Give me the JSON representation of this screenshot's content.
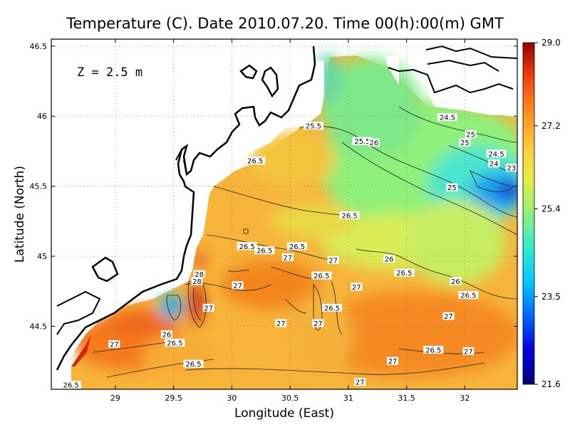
{
  "chart_data": {
    "type": "heatmap",
    "title": "Temperature (C). Date 2010.07.20. Time 00(h):00(m) GMT",
    "annotation": "Z = 2.5 m",
    "xlabel": "Longitude (East)",
    "ylabel": "Latitude (North)",
    "xlim": [
      28.45,
      32.45
    ],
    "ylim": [
      44.05,
      46.55
    ],
    "x_ticks": [
      29,
      29.5,
      30,
      30.5,
      31,
      31.5,
      32
    ],
    "x_tick_labels": [
      "29",
      "29.5",
      "30",
      "30.5",
      "31",
      "31.5",
      "32"
    ],
    "y_ticks": [
      44.5,
      45,
      45.5,
      46,
      46.5
    ],
    "y_tick_labels": [
      "44.5",
      "45",
      "45.5",
      "46",
      "46.5"
    ],
    "grid": true,
    "colorbar": {
      "min": 21.6,
      "max": 29.0,
      "ticks": [
        29.0,
        27.2,
        25.4,
        23.5,
        21.6
      ],
      "tick_labels": [
        "29.0",
        "27.2",
        "25.4",
        "23.5",
        "21.6"
      ],
      "colors": [
        "#00007a",
        "#0000e0",
        "#0066ff",
        "#00c8ff",
        "#30ecd0",
        "#90f07a",
        "#e6ee40",
        "#ffc83c",
        "#ff8c1e",
        "#f04010",
        "#9a0000"
      ]
    },
    "contour_labels": [
      {
        "text": "25.5",
        "lon": 30.7,
        "lat": 45.93
      },
      {
        "text": "25.5",
        "lon": 31.12,
        "lat": 45.82
      },
      {
        "text": "26",
        "lon": 31.22,
        "lat": 45.81
      },
      {
        "text": "24.5",
        "lon": 31.85,
        "lat": 45.99
      },
      {
        "text": "25",
        "lon": 32.05,
        "lat": 45.87
      },
      {
        "text": "25",
        "lon": 32.0,
        "lat": 45.81
      },
      {
        "text": "24.5",
        "lon": 32.27,
        "lat": 45.73
      },
      {
        "text": "24",
        "lon": 32.25,
        "lat": 45.66
      },
      {
        "text": "23",
        "lon": 32.4,
        "lat": 45.63
      },
      {
        "text": "25",
        "lon": 31.89,
        "lat": 45.49
      },
      {
        "text": "26.5",
        "lon": 30.2,
        "lat": 45.68
      },
      {
        "text": "26.5",
        "lon": 31.01,
        "lat": 45.29
      },
      {
        "text": "26.5",
        "lon": 30.56,
        "lat": 45.07
      },
      {
        "text": "26.5",
        "lon": 30.13,
        "lat": 45.07
      },
      {
        "text": "26.5",
        "lon": 30.28,
        "lat": 45.04
      },
      {
        "text": "27",
        "lon": 30.48,
        "lat": 44.99
      },
      {
        "text": "27",
        "lon": 30.87,
        "lat": 44.97
      },
      {
        "text": "26",
        "lon": 31.35,
        "lat": 44.98
      },
      {
        "text": "26.5",
        "lon": 31.48,
        "lat": 44.88
      },
      {
        "text": "26.5",
        "lon": 30.77,
        "lat": 44.86
      },
      {
        "text": "26",
        "lon": 31.92,
        "lat": 44.82
      },
      {
        "text": "26.5",
        "lon": 32.03,
        "lat": 44.72
      },
      {
        "text": "27",
        "lon": 30.05,
        "lat": 44.79
      },
      {
        "text": "27",
        "lon": 31.07,
        "lat": 44.78
      },
      {
        "text": "26.5",
        "lon": 30.86,
        "lat": 44.63
      },
      {
        "text": "27",
        "lon": 29.8,
        "lat": 44.63
      },
      {
        "text": "27",
        "lon": 30.42,
        "lat": 44.52
      },
      {
        "text": "27",
        "lon": 30.74,
        "lat": 44.52
      },
      {
        "text": "27",
        "lon": 31.86,
        "lat": 44.57
      },
      {
        "text": "26",
        "lon": 29.44,
        "lat": 44.44
      },
      {
        "text": "26.5",
        "lon": 29.51,
        "lat": 44.38
      },
      {
        "text": "27",
        "lon": 28.99,
        "lat": 44.37
      },
      {
        "text": "26.5",
        "lon": 29.67,
        "lat": 44.23
      },
      {
        "text": "26.5",
        "lon": 31.73,
        "lat": 44.33
      },
      {
        "text": "27",
        "lon": 32.03,
        "lat": 44.32
      },
      {
        "text": "27",
        "lon": 31.38,
        "lat": 44.25
      },
      {
        "text": "26.5",
        "lon": 28.62,
        "lat": 44.08
      },
      {
        "text": "27",
        "lon": 31.1,
        "lat": 44.1
      },
      {
        "text": "28",
        "lon": 29.72,
        "lat": 44.87
      },
      {
        "text": "28",
        "lon": 29.7,
        "lat": 44.82
      }
    ]
  }
}
